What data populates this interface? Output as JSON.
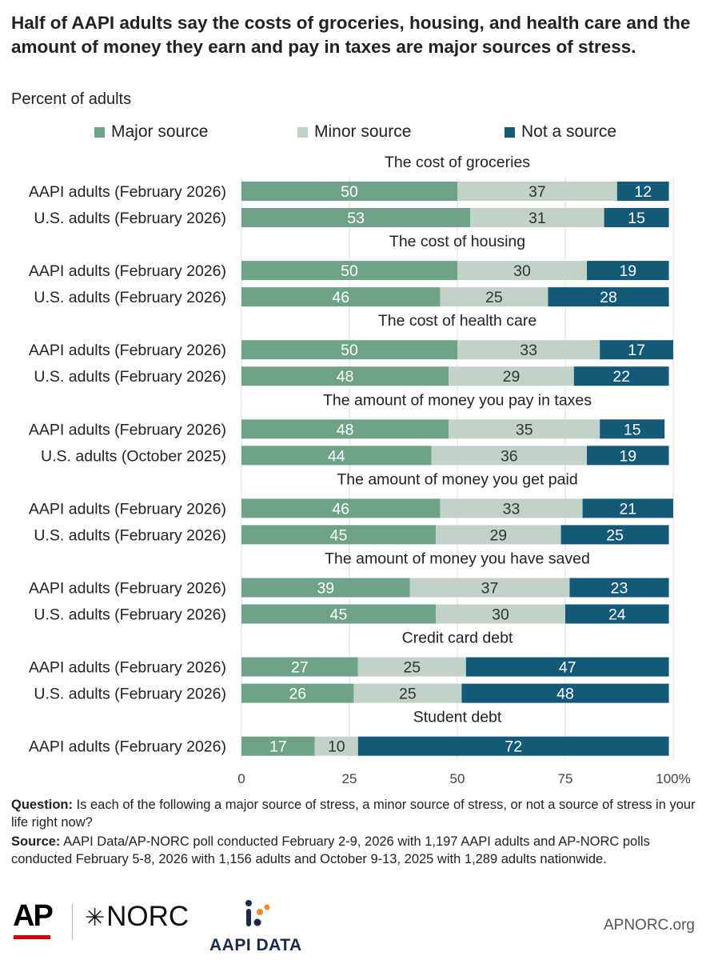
{
  "title": "Half of AAPI adults say the costs of groceries, housing, and health care and the amount of money they earn and pay in taxes are major sources of stress.",
  "subtitle": "Percent of adults",
  "colors": {
    "major": "#6ea387",
    "minor": "#c1d3c7",
    "not": "#145978",
    "axis": "#dddddd"
  },
  "legend": [
    {
      "key": "major",
      "label": "Major source"
    },
    {
      "key": "minor",
      "label": "Minor source"
    },
    {
      "key": "not",
      "label": "Not a source"
    }
  ],
  "chart_data": {
    "type": "bar",
    "orientation": "horizontal",
    "stacked": true,
    "xlim": [
      0,
      100
    ],
    "x_ticks": [
      "0",
      "25",
      "50",
      "75",
      "100%"
    ],
    "series_names": [
      "Major source",
      "Minor source",
      "Not a source"
    ],
    "groups": [
      {
        "title": "The cost of groceries",
        "rows": [
          {
            "label": "AAPI adults (February 2026)",
            "values": [
              50,
              37,
              12
            ]
          },
          {
            "label": "U.S. adults (February 2026)",
            "values": [
              53,
              31,
              15
            ]
          }
        ]
      },
      {
        "title": "The cost of housing",
        "rows": [
          {
            "label": "AAPI adults (February 2026)",
            "values": [
              50,
              30,
              19
            ]
          },
          {
            "label": "U.S. adults (February 2026)",
            "values": [
              46,
              25,
              28
            ]
          }
        ]
      },
      {
        "title": "The cost of health care",
        "rows": [
          {
            "label": "AAPI adults (February 2026)",
            "values": [
              50,
              33,
              17
            ]
          },
          {
            "label": "U.S. adults (February 2026)",
            "values": [
              48,
              29,
              22
            ]
          }
        ]
      },
      {
        "title": "The amount of money you pay in taxes",
        "rows": [
          {
            "label": "AAPI adults (February 2026)",
            "values": [
              48,
              35,
              15
            ]
          },
          {
            "label": "U.S. adults (October 2025)",
            "values": [
              44,
              36,
              19
            ]
          }
        ]
      },
      {
        "title": "The amount of money you get paid",
        "rows": [
          {
            "label": "AAPI adults (February 2026)",
            "values": [
              46,
              33,
              21
            ]
          },
          {
            "label": "U.S. adults (February 2026)",
            "values": [
              45,
              29,
              25
            ]
          }
        ]
      },
      {
        "title": "The amount of money you have saved",
        "rows": [
          {
            "label": "AAPI adults (February 2026)",
            "values": [
              39,
              37,
              23
            ]
          },
          {
            "label": "U.S. adults (February 2026)",
            "values": [
              45,
              30,
              24
            ]
          }
        ]
      },
      {
        "title": "Credit card debt",
        "rows": [
          {
            "label": "AAPI adults (February 2026)",
            "values": [
              27,
              25,
              47
            ]
          },
          {
            "label": "U.S. adults (February 2026)",
            "values": [
              26,
              25,
              48
            ]
          }
        ]
      },
      {
        "title": "Student debt",
        "rows": [
          {
            "label": "AAPI adults (February 2026)",
            "values": [
              17,
              10,
              72
            ]
          }
        ]
      }
    ]
  },
  "footnotes": {
    "question_label": "Question:",
    "question_text": " Is each of the following a major source of stress, a minor source of stress, or not a source of stress in your life right now?",
    "source_label": "Source:",
    "source_text": " AAPI Data/AP-NORC poll conducted February 2-9, 2026 with 1,197 AAPI adults and AP-NORC polls conducted February 5-8, 2026 with 1,156 adults and October 9-13, 2025 with 1,289 adults nationwide."
  },
  "branding": {
    "ap": "AP",
    "norc_star": "✳",
    "norc": "NORC",
    "aapi": "AAPI DATA",
    "site": "APNORC.org",
    "aapi_dots_color": "#f08a24"
  }
}
